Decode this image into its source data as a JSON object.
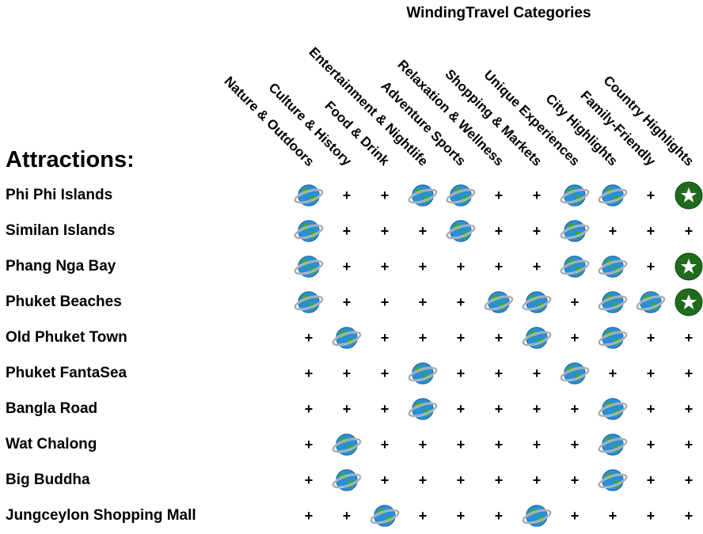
{
  "title": "WindingTravel Categories",
  "attractions_label": "Attractions:",
  "columns": [
    "Nature & Outdoors",
    "Culture & History",
    "Food & Drink",
    "Entertainment & Nightlife",
    "Adventure Sports",
    "Relaxation & Wellness",
    "Shopping & Markets",
    "Unique Experiences",
    "City Highlights",
    "Family-Friendly",
    "Country Highlights"
  ],
  "icons": {
    "match": "globe-icon",
    "none": "plus-icon",
    "highlight": "star-icon"
  },
  "plus_symbol": "+",
  "rows": [
    {
      "name": "Phi Phi Islands",
      "cells": [
        "globe",
        "plus",
        "plus",
        "globe",
        "globe",
        "plus",
        "plus",
        "globe",
        "globe",
        "plus",
        "star"
      ]
    },
    {
      "name": "Similan Islands",
      "cells": [
        "globe",
        "plus",
        "plus",
        "plus",
        "globe",
        "plus",
        "plus",
        "globe",
        "plus",
        "plus",
        "plus"
      ]
    },
    {
      "name": "Phang Nga Bay",
      "cells": [
        "globe",
        "plus",
        "plus",
        "plus",
        "plus",
        "plus",
        "plus",
        "globe",
        "globe",
        "plus",
        "star"
      ]
    },
    {
      "name": "Phuket Beaches",
      "cells": [
        "globe",
        "plus",
        "plus",
        "plus",
        "plus",
        "globe",
        "globe",
        "plus",
        "globe",
        "globe",
        "star"
      ]
    },
    {
      "name": "Old Phuket Town",
      "cells": [
        "plus",
        "globe",
        "plus",
        "plus",
        "plus",
        "plus",
        "globe",
        "plus",
        "globe",
        "plus",
        "plus"
      ]
    },
    {
      "name": "Phuket FantaSea",
      "cells": [
        "plus",
        "plus",
        "plus",
        "globe",
        "plus",
        "plus",
        "plus",
        "globe",
        "plus",
        "plus",
        "plus"
      ]
    },
    {
      "name": "Bangla Road",
      "cells": [
        "plus",
        "plus",
        "plus",
        "globe",
        "plus",
        "plus",
        "plus",
        "plus",
        "globe",
        "plus",
        "plus"
      ]
    },
    {
      "name": "Wat Chalong",
      "cells": [
        "plus",
        "globe",
        "plus",
        "plus",
        "plus",
        "plus",
        "plus",
        "plus",
        "globe",
        "plus",
        "plus"
      ]
    },
    {
      "name": "Big Buddha",
      "cells": [
        "plus",
        "globe",
        "plus",
        "plus",
        "plus",
        "plus",
        "plus",
        "plus",
        "globe",
        "plus",
        "plus"
      ]
    },
    {
      "name": "Jungceylon Shopping Mall",
      "cells": [
        "plus",
        "plus",
        "globe",
        "plus",
        "plus",
        "plus",
        "globe",
        "plus",
        "plus",
        "plus",
        "plus"
      ]
    }
  ],
  "colors": {
    "star_fill": "#1e6b1e",
    "globe_ocean": "#2a8fd6",
    "globe_land": "#3aa83a",
    "globe_ring": "#c8ccd0"
  }
}
